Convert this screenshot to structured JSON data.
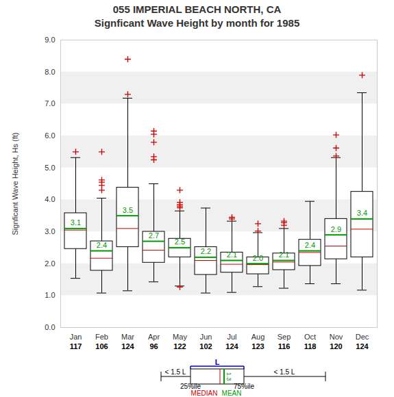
{
  "chart_data": {
    "type": "box",
    "title": "055   IMPERIAL BEACH NORTH, CA",
    "subtitle": "Signficant Wave Height by month for 1985",
    "y_label": "Signficant Wave Height, Hs (ft)",
    "categories": [
      "Jan",
      "Feb",
      "Mar",
      "Apr",
      "May",
      "Jun",
      "Jul",
      "Aug",
      "Sep",
      "Oct",
      "Nov",
      "Dec"
    ],
    "counts": [
      117,
      106,
      124,
      96,
      122,
      102,
      124,
      123,
      116,
      118,
      120,
      124
    ],
    "whisker_low": [
      1.54,
      1.08,
      1.15,
      1.43,
      1.3,
      1.08,
      1.1,
      1.28,
      1.23,
      1.37,
      1.37,
      1.17
    ],
    "q1": [
      2.46,
      1.78,
      2.52,
      2.03,
      2.2,
      1.65,
      1.72,
      1.67,
      1.8,
      1.93,
      2.14,
      2.2
    ],
    "q3": [
      3.58,
      2.7,
      4.38,
      3.0,
      2.78,
      2.52,
      2.35,
      2.2,
      2.32,
      2.75,
      3.4,
      4.25
    ],
    "whisker_high": [
      5.32,
      4.05,
      7.18,
      4.5,
      3.65,
      3.74,
      3.33,
      2.97,
      3.1,
      3.95,
      5.32,
      7.35
    ],
    "outliers": [
      [
        5.5
      ],
      [
        4.3,
        4.45,
        4.55,
        4.62,
        5.5
      ],
      [
        7.3,
        8.4
      ],
      [
        5.25,
        5.35,
        5.8,
        6.05,
        6.15
      ],
      [
        1.27,
        3.75,
        3.8,
        3.85,
        3.92,
        4.3
      ],
      [],
      [
        3.4,
        3.45
      ],
      [
        3.02,
        3.25
      ],
      [
        3.2,
        3.28,
        3.33
      ],
      [],
      [
        5.37,
        5.62,
        6.03
      ],
      [
        7.9
      ]
    ],
    "series": [
      {
        "name": "MEDIAN",
        "color": "#cc0000",
        "values": [
          3.05,
          2.17,
          3.1,
          2.42,
          2.5,
          2.1,
          1.98,
          1.97,
          2.05,
          2.35,
          2.55,
          3.08
        ]
      },
      {
        "name": "MEAN",
        "color": "#009900",
        "values": [
          3.1,
          2.4,
          3.5,
          2.7,
          2.5,
          2.2,
          2.1,
          2.0,
          2.1,
          2.4,
          2.9,
          3.4
        ],
        "value_labels": [
          "3.1",
          "2.4",
          "3.5",
          "2.7",
          "2.5",
          "2.2",
          "2.1",
          "2.0",
          "2.1",
          "2.4",
          "2.9",
          "3.4"
        ]
      }
    ],
    "data_labels": true,
    "marker": "plus",
    "grid": true,
    "ylim": [
      0,
      9
    ],
    "yticks": [
      {
        "value": 0,
        "label": "0.0"
      },
      {
        "value": 1,
        "label": "1.0"
      },
      {
        "value": 2,
        "label": "2.0"
      },
      {
        "value": 3,
        "label": "3.0"
      },
      {
        "value": 4,
        "label": "4.0"
      },
      {
        "value": 5,
        "label": "5.0"
      },
      {
        "value": 6,
        "label": "6.0"
      },
      {
        "value": 7,
        "label": "7.0"
      },
      {
        "value": 8,
        "label": "8.0"
      },
      {
        "value": 9,
        "label": "9.0"
      }
    ],
    "annotations": {
      "box_length": "L",
      "whisker_left": "< 1.5 L",
      "whisker_right": "< 1.5 L",
      "q1": "25%ile",
      "q3": "75%ile",
      "mean_value": "1.3"
    }
  }
}
